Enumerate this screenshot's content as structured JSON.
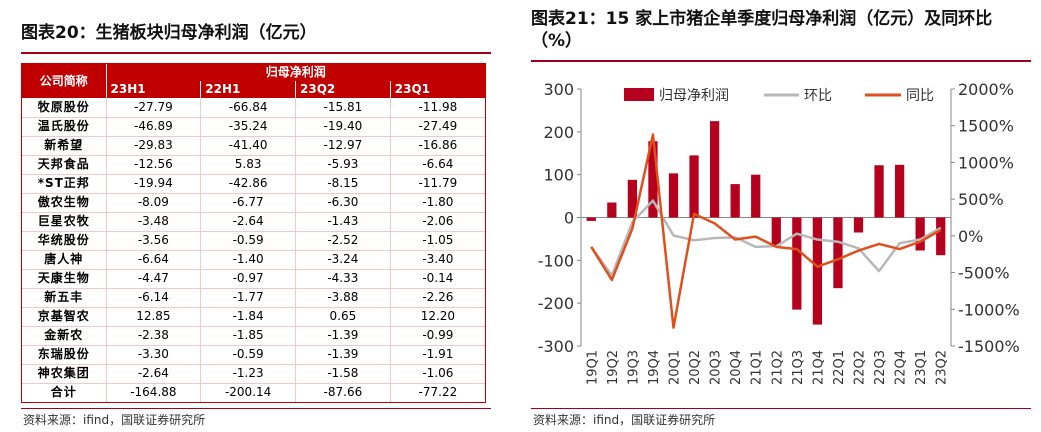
{
  "left": {
    "title": "图表20：生猪板块归母净利润（亿元）",
    "source": "资料来源：ifind，国联证券研究所",
    "table": {
      "company_header": "公司简称",
      "group_header": "归母净利润",
      "periods": [
        "23H1",
        "22H1",
        "23Q2",
        "23Q1"
      ],
      "rows": [
        {
          "name": "牧原股份",
          "values": [
            "-27.79",
            "-66.84",
            "-15.81",
            "-11.98"
          ]
        },
        {
          "name": "温氏股份",
          "values": [
            "-46.89",
            "-35.24",
            "-19.40",
            "-27.49"
          ]
        },
        {
          "name": "新希望",
          "values": [
            "-29.83",
            "-41.40",
            "-12.97",
            "-16.86"
          ]
        },
        {
          "name": "天邦食品",
          "values": [
            "-12.56",
            "5.83",
            "-5.93",
            "-6.64"
          ]
        },
        {
          "name": "*ST正邦",
          "values": [
            "-19.94",
            "-42.86",
            "-8.15",
            "-11.79"
          ]
        },
        {
          "name": "傲农生物",
          "values": [
            "-8.09",
            "-6.77",
            "-6.30",
            "-1.80"
          ]
        },
        {
          "name": "巨星农牧",
          "values": [
            "-3.48",
            "-2.64",
            "-1.43",
            "-2.06"
          ]
        },
        {
          "name": "华统股份",
          "values": [
            "-3.56",
            "-0.59",
            "-2.52",
            "-1.05"
          ]
        },
        {
          "name": "唐人神",
          "values": [
            "-6.64",
            "-1.40",
            "-3.24",
            "-3.40"
          ]
        },
        {
          "name": "天康生物",
          "values": [
            "-4.47",
            "-0.97",
            "-4.33",
            "-0.14"
          ]
        },
        {
          "name": "新五丰",
          "values": [
            "-6.14",
            "-1.77",
            "-3.88",
            "-2.26"
          ]
        },
        {
          "name": "京基智农",
          "values": [
            "12.85",
            "-1.84",
            "0.65",
            "12.20"
          ]
        },
        {
          "name": "金新农",
          "values": [
            "-2.38",
            "-1.85",
            "-1.39",
            "-0.99"
          ]
        },
        {
          "name": "东瑞股份",
          "values": [
            "-3.30",
            "-0.59",
            "-1.39",
            "-1.91"
          ]
        },
        {
          "name": "神农集团",
          "values": [
            "-2.64",
            "-1.23",
            "-1.58",
            "-1.06"
          ]
        },
        {
          "name": "合计",
          "values": [
            "-164.88",
            "-200.14",
            "-87.66",
            "-77.22"
          ]
        }
      ]
    }
  },
  "right": {
    "title": "图表21：15 家上市猪企单季度归母净利润（亿元）及同环比（%）",
    "source": "资料来源：ifind，国联证券研究所"
  },
  "chart_data": {
    "type": "bar",
    "categories": [
      "19Q1",
      "19Q2",
      "19Q3",
      "19Q4",
      "20Q1",
      "20Q2",
      "20Q3",
      "20Q4",
      "21Q1",
      "21Q2",
      "21Q3",
      "21Q4",
      "22Q1",
      "22Q2",
      "22Q3",
      "22Q4",
      "23Q1",
      "23Q2"
    ],
    "series": [
      {
        "name": "归母净利润",
        "type": "bar",
        "axis": "left",
        "color": "#b5001e",
        "values": [
          -8,
          35,
          88,
          178,
          103,
          145,
          225,
          78,
          100,
          -65,
          -215,
          -250,
          -165,
          -35,
          122,
          123,
          -77,
          -88
        ]
      },
      {
        "name": "环比",
        "type": "line",
        "axis": "right",
        "color": "#b8b8b8",
        "values": [
          -150,
          -540,
          190,
          480,
          5,
          -60,
          -30,
          -20,
          -150,
          -140,
          30,
          -50,
          -80,
          -170,
          -480,
          -100,
          -50,
          110
        ]
      },
      {
        "name": "同比",
        "type": "line",
        "axis": "right",
        "color": "#e0501e",
        "values": [
          -150,
          -600,
          100,
          1380,
          -1250,
          300,
          170,
          -50,
          -10,
          -150,
          -180,
          -420,
          -320,
          -200,
          -110,
          -180,
          -80,
          80
        ]
      }
    ],
    "y_left": {
      "min": -300,
      "max": 300,
      "ticks": [
        "300",
        "200",
        "100",
        "0",
        "-100",
        "-200",
        "-300"
      ]
    },
    "y_right": {
      "min": -1500,
      "max": 2000,
      "ticks": [
        "2000%",
        "1500%",
        "1000%",
        "500%",
        "0%",
        "-500%",
        "-1000%",
        "-1500%"
      ]
    },
    "legend": "top",
    "grid": false
  }
}
